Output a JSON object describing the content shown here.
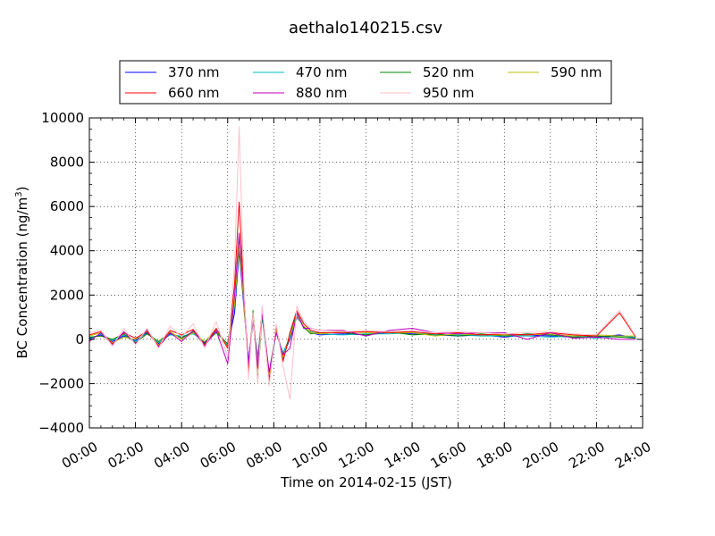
{
  "chart_data": {
    "type": "line",
    "title": "aethalo140215.csv",
    "xlabel": "Time on 2014-02-15 (JST)",
    "ylabel_main": "BC Concentration (ng/m",
    "ylabel_sup": "3",
    "ylabel_close": ")",
    "xlim_hours": [
      0,
      24
    ],
    "ylim": [
      -4000,
      10000
    ],
    "x_ticks": [
      "00:00",
      "02:00",
      "04:00",
      "06:00",
      "08:00",
      "10:00",
      "12:00",
      "14:00",
      "16:00",
      "18:00",
      "20:00",
      "22:00",
      "24:00"
    ],
    "y_ticks": [
      "−4000",
      "−2000",
      "0",
      "2000",
      "4000",
      "6000",
      "8000",
      "10000"
    ],
    "grid": true,
    "legend_position": "top, above plot",
    "legend_order": [
      "370 nm",
      "660 nm",
      "470 nm",
      "880 nm",
      "520 nm",
      "950 nm",
      "590 nm"
    ],
    "series": [
      {
        "name": "370 nm",
        "color": "#0000ff",
        "points": [
          [
            0,
            50
          ],
          [
            0.5,
            200
          ],
          [
            1,
            -100
          ],
          [
            1.5,
            150
          ],
          [
            2,
            -50
          ],
          [
            2.5,
            300
          ],
          [
            3,
            -200
          ],
          [
            3.5,
            250
          ],
          [
            4,
            100
          ],
          [
            4.5,
            300
          ],
          [
            5,
            -150
          ],
          [
            5.5,
            400
          ],
          [
            6,
            -300
          ],
          [
            6.3,
            1200
          ],
          [
            6.5,
            4000
          ],
          [
            6.7,
            1500
          ],
          [
            6.9,
            -1000
          ],
          [
            7.1,
            800
          ],
          [
            7.3,
            -800
          ],
          [
            7.5,
            1000
          ],
          [
            7.8,
            -1500
          ],
          [
            8.1,
            400
          ],
          [
            8.4,
            -700
          ],
          [
            8.7,
            0
          ],
          [
            9,
            1000
          ],
          [
            9.3,
            600
          ],
          [
            9.6,
            300
          ],
          [
            10,
            200
          ],
          [
            11,
            250
          ],
          [
            12,
            200
          ],
          [
            13,
            300
          ],
          [
            14,
            250
          ],
          [
            15,
            200
          ],
          [
            16,
            150
          ],
          [
            17,
            200
          ],
          [
            18,
            100
          ],
          [
            19,
            200
          ],
          [
            20,
            150
          ],
          [
            21,
            100
          ],
          [
            22,
            100
          ],
          [
            23,
            200
          ],
          [
            23.7,
            50
          ]
        ]
      },
      {
        "name": "470 nm",
        "color": "#00bfbf",
        "points": [
          [
            0,
            0
          ],
          [
            0.5,
            250
          ],
          [
            1,
            -50
          ],
          [
            1.5,
            200
          ],
          [
            2,
            -100
          ],
          [
            2.5,
            350
          ],
          [
            3,
            -150
          ],
          [
            3.5,
            200
          ],
          [
            4,
            150
          ],
          [
            4.5,
            250
          ],
          [
            5,
            -100
          ],
          [
            5.5,
            350
          ],
          [
            6,
            -250
          ],
          [
            6.3,
            1500
          ],
          [
            6.5,
            4400
          ],
          [
            6.7,
            1800
          ],
          [
            6.9,
            -1200
          ],
          [
            7.1,
            900
          ],
          [
            7.3,
            -900
          ],
          [
            7.5,
            1100
          ],
          [
            7.8,
            -1900
          ],
          [
            8.1,
            300
          ],
          [
            8.4,
            -600
          ],
          [
            8.7,
            100
          ],
          [
            9,
            1100
          ],
          [
            9.3,
            500
          ],
          [
            9.6,
            350
          ],
          [
            10,
            250
          ],
          [
            11,
            200
          ],
          [
            12,
            250
          ],
          [
            13,
            250
          ],
          [
            14,
            300
          ],
          [
            15,
            200
          ],
          [
            16,
            200
          ],
          [
            17,
            150
          ],
          [
            18,
            150
          ],
          [
            19,
            150
          ],
          [
            20,
            100
          ],
          [
            21,
            150
          ],
          [
            22,
            50
          ],
          [
            23,
            150
          ],
          [
            23.7,
            100
          ]
        ]
      },
      {
        "name": "520 nm",
        "color": "#008000",
        "points": [
          [
            0,
            100
          ],
          [
            0.5,
            150
          ],
          [
            1,
            0
          ],
          [
            1.5,
            250
          ],
          [
            2,
            -150
          ],
          [
            2.5,
            250
          ],
          [
            3,
            -100
          ],
          [
            3.5,
            300
          ],
          [
            4,
            50
          ],
          [
            4.5,
            350
          ],
          [
            5,
            -200
          ],
          [
            5.5,
            300
          ],
          [
            6,
            -200
          ],
          [
            6.3,
            1800
          ],
          [
            6.5,
            4700
          ],
          [
            6.7,
            2000
          ],
          [
            6.9,
            -1500
          ],
          [
            7.1,
            1300
          ],
          [
            7.3,
            -1900
          ],
          [
            7.5,
            1200
          ],
          [
            7.8,
            -1700
          ],
          [
            8.1,
            500
          ],
          [
            8.4,
            -900
          ],
          [
            8.7,
            200
          ],
          [
            9,
            1200
          ],
          [
            9.3,
            550
          ],
          [
            9.6,
            250
          ],
          [
            10,
            300
          ],
          [
            11,
            300
          ],
          [
            12,
            200
          ],
          [
            13,
            350
          ],
          [
            14,
            200
          ],
          [
            15,
            250
          ],
          [
            16,
            150
          ],
          [
            17,
            250
          ],
          [
            18,
            150
          ],
          [
            19,
            250
          ],
          [
            20,
            200
          ],
          [
            21,
            100
          ],
          [
            22,
            150
          ],
          [
            23,
            100
          ],
          [
            23.7,
            50
          ]
        ]
      },
      {
        "name": "590 nm",
        "color": "#bfbf00",
        "points": [
          [
            0,
            150
          ],
          [
            0.5,
            300
          ],
          [
            1,
            -150
          ],
          [
            1.5,
            100
          ],
          [
            2,
            0
          ],
          [
            2.5,
            400
          ],
          [
            3,
            -250
          ],
          [
            3.5,
            350
          ],
          [
            4,
            0
          ],
          [
            4.5,
            300
          ],
          [
            5,
            -100
          ],
          [
            5.5,
            450
          ],
          [
            6,
            -350
          ],
          [
            6.3,
            1600
          ],
          [
            6.5,
            4300
          ],
          [
            6.7,
            1700
          ],
          [
            6.9,
            -1300
          ],
          [
            7.1,
            1000
          ],
          [
            7.3,
            -1100
          ],
          [
            7.5,
            1300
          ],
          [
            7.8,
            -1600
          ],
          [
            8.1,
            450
          ],
          [
            8.4,
            -800
          ],
          [
            8.7,
            150
          ],
          [
            9,
            1050
          ],
          [
            9.3,
            600
          ],
          [
            9.6,
            300
          ],
          [
            10,
            250
          ],
          [
            11,
            350
          ],
          [
            12,
            300
          ],
          [
            13,
            300
          ],
          [
            14,
            300
          ],
          [
            15,
            150
          ],
          [
            16,
            250
          ],
          [
            17,
            200
          ],
          [
            18,
            200
          ],
          [
            19,
            200
          ],
          [
            20,
            250
          ],
          [
            21,
            150
          ],
          [
            22,
            200
          ],
          [
            23,
            150
          ],
          [
            23.7,
            150
          ]
        ]
      },
      {
        "name": "660 nm",
        "color": "#ff0000",
        "points": [
          [
            0,
            200
          ],
          [
            0.5,
            350
          ],
          [
            1,
            -200
          ],
          [
            1.5,
            300
          ],
          [
            2,
            50
          ],
          [
            2.5,
            350
          ],
          [
            3,
            -300
          ],
          [
            3.5,
            400
          ],
          [
            4,
            200
          ],
          [
            4.5,
            450
          ],
          [
            5,
            -250
          ],
          [
            5.5,
            500
          ],
          [
            6,
            -400
          ],
          [
            6.3,
            2500
          ],
          [
            6.5,
            6200
          ],
          [
            6.7,
            2200
          ],
          [
            6.9,
            -1400
          ],
          [
            7.1,
            1100
          ],
          [
            7.3,
            -1300
          ],
          [
            7.5,
            1400
          ],
          [
            7.8,
            -2000
          ],
          [
            8.1,
            600
          ],
          [
            8.4,
            -1000
          ],
          [
            8.7,
            300
          ],
          [
            9,
            1300
          ],
          [
            9.3,
            700
          ],
          [
            9.6,
            400
          ],
          [
            10,
            300
          ],
          [
            11,
            300
          ],
          [
            12,
            350
          ],
          [
            13,
            300
          ],
          [
            14,
            350
          ],
          [
            15,
            250
          ],
          [
            16,
            300
          ],
          [
            17,
            200
          ],
          [
            18,
            250
          ],
          [
            19,
            200
          ],
          [
            20,
            300
          ],
          [
            21,
            200
          ],
          [
            22,
            150
          ],
          [
            23,
            1200
          ],
          [
            23.7,
            100
          ]
        ]
      },
      {
        "name": "880 nm",
        "color": "#bf00bf",
        "points": [
          [
            0,
            -100
          ],
          [
            0.5,
            300
          ],
          [
            1,
            -250
          ],
          [
            1.5,
            350
          ],
          [
            2,
            -200
          ],
          [
            2.5,
            450
          ],
          [
            3,
            -350
          ],
          [
            3.5,
            300
          ],
          [
            4,
            -100
          ],
          [
            4.5,
            400
          ],
          [
            5,
            -300
          ],
          [
            5.5,
            400
          ],
          [
            6,
            -1100
          ],
          [
            6.3,
            2000
          ],
          [
            6.5,
            4800
          ],
          [
            6.7,
            2100
          ],
          [
            6.9,
            -1100
          ],
          [
            7.1,
            900
          ],
          [
            7.3,
            -1200
          ],
          [
            7.5,
            1200
          ],
          [
            7.8,
            -1500
          ],
          [
            8.1,
            300
          ],
          [
            8.4,
            -700
          ],
          [
            8.7,
            -400
          ],
          [
            9,
            1200
          ],
          [
            9.3,
            500
          ],
          [
            9.6,
            500
          ],
          [
            10,
            400
          ],
          [
            11,
            400
          ],
          [
            12,
            150
          ],
          [
            13,
            400
          ],
          [
            14,
            500
          ],
          [
            15,
            300
          ],
          [
            16,
            250
          ],
          [
            17,
            300
          ],
          [
            18,
            300
          ],
          [
            19,
            0
          ],
          [
            20,
            300
          ],
          [
            21,
            50
          ],
          [
            22,
            100
          ],
          [
            23,
            0
          ],
          [
            23.7,
            0
          ]
        ]
      },
      {
        "name": "950 nm",
        "color": "#ffc0cb",
        "points": [
          [
            0,
            300
          ],
          [
            0.5,
            400
          ],
          [
            1,
            -300
          ],
          [
            1.5,
            500
          ],
          [
            2,
            -250
          ],
          [
            2.5,
            500
          ],
          [
            3,
            -400
          ],
          [
            3.5,
            600
          ],
          [
            4,
            100
          ],
          [
            4.5,
            700
          ],
          [
            5,
            -400
          ],
          [
            5.5,
            800
          ],
          [
            6,
            -800
          ],
          [
            6.3,
            3500
          ],
          [
            6.5,
            9600
          ],
          [
            6.7,
            2500
          ],
          [
            6.9,
            -1800
          ],
          [
            7.1,
            1200
          ],
          [
            7.3,
            -2000
          ],
          [
            7.5,
            1500
          ],
          [
            7.8,
            -2100
          ],
          [
            8.1,
            700
          ],
          [
            8.4,
            -1200
          ],
          [
            8.7,
            -2700
          ],
          [
            9,
            1500
          ],
          [
            9.3,
            800
          ],
          [
            9.6,
            500
          ],
          [
            10,
            400
          ],
          [
            11,
            350
          ],
          [
            12,
            400
          ],
          [
            13,
            350
          ],
          [
            14,
            400
          ],
          [
            15,
            300
          ],
          [
            16,
            350
          ],
          [
            17,
            300
          ],
          [
            18,
            250
          ],
          [
            19,
            300
          ],
          [
            20,
            350
          ],
          [
            21,
            250
          ],
          [
            22,
            200
          ],
          [
            23,
            1300
          ],
          [
            23.7,
            150
          ]
        ]
      }
    ]
  }
}
